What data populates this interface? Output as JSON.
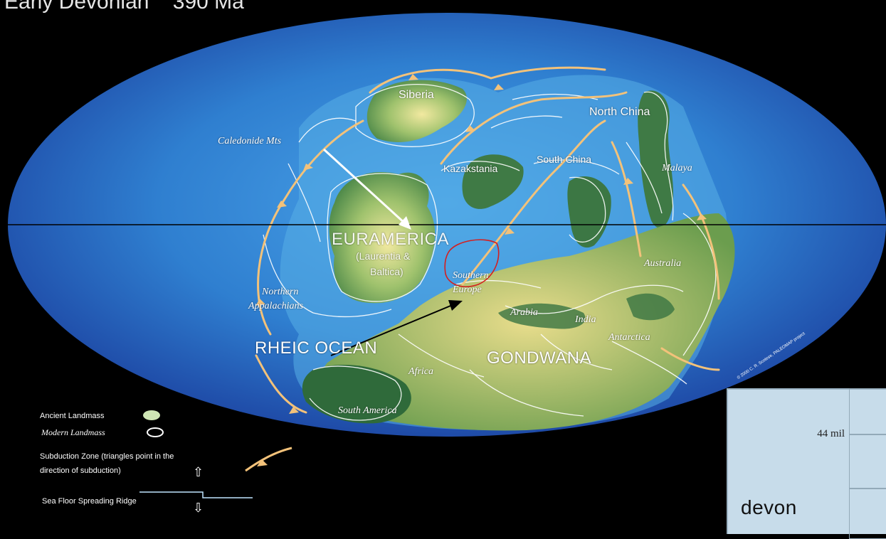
{
  "title": "Early Devonian    390 Ma",
  "regions": {
    "siberia": "Siberia",
    "north_china": "North China",
    "caledonide": "Caledonide Mts",
    "kazakstania": "Kazakstania",
    "south_china": "South China",
    "malaya": "Malaya",
    "euramerica": "EURAMERICA",
    "laurentia": "(Laurentia &",
    "baltica": "Baltica)",
    "southern_europe_1": "Southern",
    "southern_europe_2": "Europe",
    "australia": "Australia",
    "northern_app_1": "Northern",
    "northern_app_2": "Appalachians",
    "arabia": "Arabia",
    "india": "India",
    "antarctica": "Antarctica",
    "rheic_ocean": "RHEIC OCEAN",
    "gondwana": "GONDWANA",
    "africa": "Africa",
    "south_america": "South America"
  },
  "copyright": "© 2000  C. R. Scotese, PALEOMAP project",
  "legend": {
    "ancient": "Ancient Landmass",
    "modern": "Modern Landmass",
    "subduction_1": "Subduction Zone  (triangles point in the",
    "subduction_2": "direction of subduction)",
    "ridge": "Sea Floor Spreading Ridge"
  },
  "inset": {
    "value": "44 mil",
    "word": "devon"
  },
  "colors": {
    "ocean": "#2f7fd0",
    "ocean_edge": "#1c4fb0",
    "land": "#8fb869",
    "land_dark": "#2f6a3a",
    "subduction": "#f3c27a",
    "background": "#000000"
  }
}
